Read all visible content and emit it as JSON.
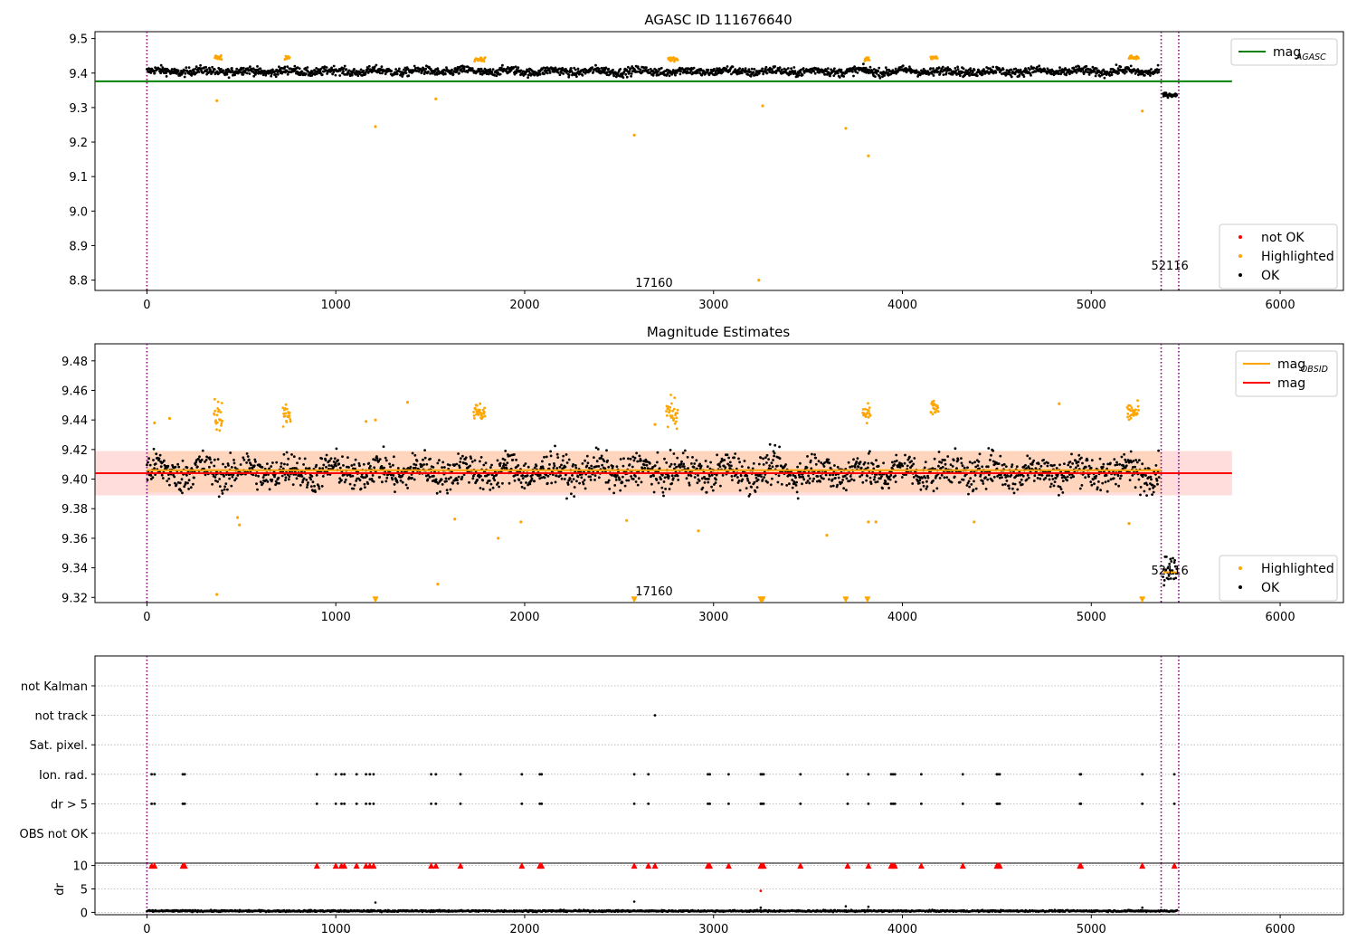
{
  "chart_data": [
    {
      "type": "scatter",
      "title": "AGASC ID 111676640",
      "xlim": [
        -275,
        6335
      ],
      "ylim": [
        8.77,
        9.52
      ],
      "xticks": [
        0,
        1000,
        2000,
        3000,
        4000,
        5000,
        6000
      ],
      "yticks": [
        8.8,
        8.9,
        9.0,
        9.1,
        9.2,
        9.3,
        9.4,
        9.5
      ],
      "ytick_labels": [
        "8.8",
        "8.9",
        "9.0",
        "9.1",
        "9.2",
        "9.3",
        "9.4",
        "9.5"
      ],
      "obs_boundaries": [
        0,
        5370,
        5463
      ],
      "obs_labels": [
        {
          "x": 2685,
          "y": 8.78,
          "text": "17160"
        },
        {
          "x": 5416,
          "y": 8.83,
          "text": "52116"
        }
      ],
      "hline": {
        "name": "mag_AGASC",
        "y": 9.376,
        "x_range": [
          -275,
          5745
        ],
        "color": "#008000"
      },
      "series": [
        {
          "name": "not OK",
          "color": "#ff0000",
          "points": []
        },
        {
          "name": "Highlighted",
          "color": "#ffa500",
          "points": [
            [
              370,
              9.32
            ],
            [
              1210,
              9.245
            ],
            [
              1530,
              9.325
            ],
            [
              2580,
              9.22
            ],
            [
              3260,
              9.305
            ],
            [
              3240,
              8.8
            ],
            [
              3700,
              9.24
            ],
            [
              3820,
              9.16
            ],
            [
              5270,
              9.29
            ]
          ]
        },
        {
          "name": "OK",
          "color": "#000000",
          "segments": [
            [
              0,
              5360,
              9.405,
              0.012
            ],
            [
              5380,
              5455,
              9.335,
              0.006
            ]
          ]
        }
      ],
      "highlight_clusters": [
        [
          360,
          395,
          9.445
        ],
        [
          730,
          755,
          9.445
        ],
        [
          1735,
          1790,
          9.44
        ],
        [
          2760,
          2810,
          9.44
        ],
        [
          3800,
          3825,
          9.44
        ],
        [
          4150,
          4185,
          9.445
        ],
        [
          5200,
          5250,
          9.445
        ]
      ],
      "legends": [
        {
          "position": "upper right",
          "items": [
            {
              "label": "mag",
              "sub": "AGASC",
              "kind": "line",
              "color": "#008000"
            }
          ]
        },
        {
          "position": "lower right",
          "items": [
            {
              "label": "not OK",
              "kind": "dot",
              "color": "#ff0000"
            },
            {
              "label": "Highlighted",
              "kind": "dot",
              "color": "#ffa500"
            },
            {
              "label": "OK",
              "kind": "dot",
              "color": "#000000"
            }
          ]
        }
      ]
    },
    {
      "type": "scatter",
      "title": "Magnitude Estimates",
      "xlim": [
        -275,
        6335
      ],
      "ylim": [
        9.3165,
        9.4915
      ],
      "xticks": [
        0,
        1000,
        2000,
        3000,
        4000,
        5000,
        6000
      ],
      "yticks": [
        9.32,
        9.34,
        9.36,
        9.38,
        9.4,
        9.42,
        9.44,
        9.46,
        9.48
      ],
      "ytick_labels": [
        "9.32",
        "9.34",
        "9.36",
        "9.38",
        "9.40",
        "9.42",
        "9.44",
        "9.46",
        "9.48"
      ],
      "obs_boundaries": [
        0,
        5370,
        5463
      ],
      "obs_labels": [
        {
          "x": 2685,
          "y": 9.3215,
          "text": "17160"
        },
        {
          "x": 5416,
          "y": 9.3355,
          "text": "52116"
        }
      ],
      "band": {
        "y": [
          9.389,
          9.419
        ],
        "x_range": [
          -275,
          5745
        ],
        "color": "#ffdddd"
      },
      "band_obs": {
        "y": [
          9.391,
          9.419
        ],
        "x_range": [
          0,
          5370
        ],
        "color": "#ffd2b0"
      },
      "mag_line": {
        "name": "mag",
        "y": 9.404,
        "x_range": [
          -275,
          5745
        ],
        "color": "#ff0000"
      },
      "obsid_lines": [
        {
          "y": 9.406,
          "x_range": [
            0,
            5370
          ],
          "color": "#ffa500"
        },
        {
          "y": 9.337,
          "x_range": [
            5380,
            5455
          ],
          "color": "#ffa500"
        }
      ],
      "series": [
        {
          "name": "Highlighted",
          "color": "#ffa500",
          "points": [
            [
              370,
              9.322
            ],
            [
              1540,
              9.329
            ],
            [
              1380,
              9.452
            ],
            [
              1860,
              9.36
            ],
            [
              2540,
              9.372
            ],
            [
              2920,
              9.365
            ],
            [
              3820,
              9.371
            ],
            [
              3600,
              9.362
            ],
            [
              4830,
              9.451
            ],
            [
              5200,
              9.37
            ],
            [
              120,
              9.441
            ],
            [
              40,
              9.438
            ],
            [
              490,
              9.369
            ],
            [
              480,
              9.374
            ],
            [
              1210,
              9.44
            ],
            [
              1160,
              9.439
            ],
            [
              1630,
              9.373
            ],
            [
              1980,
              9.371
            ],
            [
              2690,
              9.437
            ],
            [
              4380,
              9.371
            ],
            [
              3860,
              9.371
            ]
          ]
        },
        {
          "name": "Highlighted-below",
          "color": "#ffa500",
          "marker": "down",
          "points": [
            [
              1210,
              9.3185
            ],
            [
              2580,
              9.3185
            ],
            [
              3250,
              9.3185
            ],
            [
              3260,
              9.3185
            ],
            [
              3700,
              9.3185
            ],
            [
              3815,
              9.3185
            ],
            [
              5270,
              9.3185
            ]
          ]
        },
        {
          "name": "OK",
          "color": "#000000",
          "segments": [
            [
              0,
              5360,
              9.405,
              0.011
            ],
            [
              5380,
              5455,
              9.336,
              0.01
            ]
          ]
        }
      ],
      "highlight_clusters": [
        [
          355,
          400,
          9.445,
          0.012
        ],
        [
          720,
          760,
          9.445,
          0.008
        ],
        [
          1730,
          1790,
          9.445,
          0.006
        ],
        [
          2750,
          2810,
          9.445,
          0.01
        ],
        [
          3790,
          3830,
          9.445,
          0.006
        ],
        [
          4150,
          4190,
          9.448,
          0.006
        ],
        [
          5190,
          5250,
          9.445,
          0.006
        ]
      ],
      "legends": [
        {
          "position": "upper right",
          "items": [
            {
              "label": "mag",
              "sub": "OBSID",
              "kind": "line",
              "color": "#ffa500"
            },
            {
              "label": "mag",
              "kind": "line",
              "color": "#ff0000"
            }
          ]
        },
        {
          "position": "lower right",
          "items": [
            {
              "label": "Highlighted",
              "kind": "dot",
              "color": "#ffa500"
            },
            {
              "label": "OK",
              "kind": "dot",
              "color": "#000000"
            }
          ]
        }
      ]
    },
    {
      "type": "scatter",
      "title": "",
      "xlim": [
        -275,
        6335
      ],
      "categories": [
        "OBS not OK",
        "dr > 5",
        "Ion. rad.",
        "Sat. pixel.",
        "not track",
        "not Kalman"
      ],
      "flag_points": {
        "dr > 5": [
          25,
          40,
          190,
          200,
          900,
          1000,
          1030,
          1045,
          1110,
          1160,
          1180,
          1200,
          1505,
          1530,
          1660,
          1985,
          2080,
          2090,
          2580,
          2655,
          2970,
          2980,
          3080,
          3250,
          3255,
          3265,
          3460,
          3710,
          3820,
          3940,
          3950,
          3960,
          4100,
          4320,
          4500,
          4505,
          4515,
          4940,
          4945,
          5270,
          5440
        ],
        "Ion. rad.": [
          25,
          40,
          190,
          200,
          900,
          1000,
          1030,
          1045,
          1110,
          1160,
          1180,
          1200,
          1505,
          1530,
          1660,
          1985,
          2080,
          2090,
          2580,
          2655,
          2970,
          2980,
          3080,
          3250,
          3255,
          3265,
          3460,
          3710,
          3820,
          3940,
          3950,
          3960,
          4100,
          4320,
          4500,
          4505,
          4515,
          4940,
          4945,
          5270,
          5440
        ],
        "not track": [
          2690
        ]
      }
    },
    {
      "type": "scatter",
      "title": "",
      "xlim": [
        -275,
        6335
      ],
      "ylim": [
        -0.5,
        10.5
      ],
      "ylabel": "dr",
      "xticks": [
        0,
        1000,
        2000,
        3000,
        4000,
        5000,
        6000
      ],
      "yticks": [
        0,
        5,
        10
      ],
      "ytick_labels": [
        "0",
        "5",
        "10"
      ],
      "series": [
        {
          "name": "dr",
          "color": "#000000",
          "segments": [
            [
              0,
              5455,
              0.3,
              0.18
            ]
          ]
        },
        {
          "name": "dr outliers",
          "color": "#000000",
          "points": [
            [
              1210,
              2.1
            ],
            [
              2580,
              2.3
            ],
            [
              3250,
              1.0
            ],
            [
              3700,
              1.3
            ],
            [
              3820,
              1.2
            ],
            [
              5270,
              1.0
            ]
          ]
        },
        {
          "name": "dr > 10",
          "color": "#ff0000",
          "marker": "up",
          "points": [
            [
              25,
              10
            ],
            [
              40,
              10
            ],
            [
              190,
              10
            ],
            [
              200,
              10
            ],
            [
              900,
              10
            ],
            [
              1000,
              10
            ],
            [
              1030,
              10
            ],
            [
              1045,
              10
            ],
            [
              1110,
              10
            ],
            [
              1160,
              10
            ],
            [
              1180,
              10
            ],
            [
              1200,
              10
            ],
            [
              1505,
              10
            ],
            [
              1530,
              10
            ],
            [
              1660,
              10
            ],
            [
              1985,
              10
            ],
            [
              2080,
              10
            ],
            [
              2090,
              10
            ],
            [
              2580,
              10
            ],
            [
              2655,
              10
            ],
            [
              2690,
              10
            ],
            [
              2970,
              10
            ],
            [
              2980,
              10
            ],
            [
              3080,
              10
            ],
            [
              3250,
              10
            ],
            [
              3255,
              10
            ],
            [
              3265,
              10
            ],
            [
              3460,
              10
            ],
            [
              3710,
              10
            ],
            [
              3820,
              10
            ],
            [
              3940,
              10
            ],
            [
              3950,
              10
            ],
            [
              3960,
              10
            ],
            [
              4100,
              10
            ],
            [
              4320,
              10
            ],
            [
              4500,
              10
            ],
            [
              4505,
              10
            ],
            [
              4515,
              10
            ],
            [
              4940,
              10
            ],
            [
              4945,
              10
            ],
            [
              5270,
              10
            ],
            [
              5440,
              10
            ]
          ]
        },
        {
          "name": "dr mid",
          "color": "#ff0000",
          "points": [
            [
              3250,
              4.6
            ]
          ]
        }
      ]
    }
  ]
}
